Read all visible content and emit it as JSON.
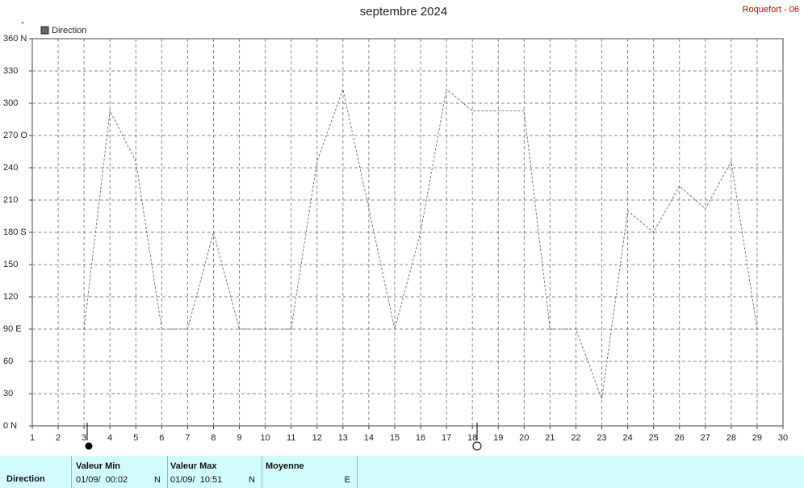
{
  "chart_data": {
    "type": "line",
    "title": "septembre 2024",
    "station": "Roquefort - 06",
    "unit_label": "°",
    "x": [
      1,
      2,
      3,
      4,
      5,
      6,
      7,
      8,
      9,
      10,
      11,
      12,
      13,
      14,
      15,
      16,
      17,
      18,
      19,
      20,
      21,
      22,
      23,
      24,
      25,
      26,
      27,
      28,
      29,
      30
    ],
    "xlim": [
      1,
      30
    ],
    "xticks": [
      1,
      2,
      3,
      4,
      5,
      6,
      7,
      8,
      9,
      10,
      11,
      12,
      13,
      14,
      15,
      16,
      17,
      18,
      19,
      20,
      21,
      22,
      23,
      24,
      25,
      26,
      27,
      28,
      29,
      30
    ],
    "series": [
      {
        "name": "Direction",
        "color": "#777777",
        "values": [
          null,
          null,
          90,
          293,
          246,
          90,
          90,
          180,
          90,
          90,
          90,
          246,
          313,
          202,
          90,
          180,
          313,
          293,
          293,
          293,
          90,
          90,
          25,
          200,
          180,
          223,
          202,
          246,
          90,
          null
        ]
      }
    ],
    "ylim": [
      0,
      360
    ],
    "yticks": [
      {
        "value": 0,
        "label": "0  N"
      },
      30,
      60,
      {
        "value": 90,
        "label": "90  E"
      },
      120,
      150,
      {
        "value": 180,
        "label": "180 S"
      },
      210,
      240,
      {
        "value": 270,
        "label": "270 O"
      },
      300,
      330,
      {
        "value": 360,
        "label": "360 N"
      }
    ],
    "grid": true
  },
  "summary": {
    "row_label": "Direction",
    "min_title": "Valeur Min",
    "min_time": "01/09/  00:02",
    "min_value": "N",
    "max_title": "Valeur Max",
    "max_time": "01/09/  10:51",
    "max_value": "N",
    "mean_title": "Moyenne",
    "mean_value": "E"
  }
}
